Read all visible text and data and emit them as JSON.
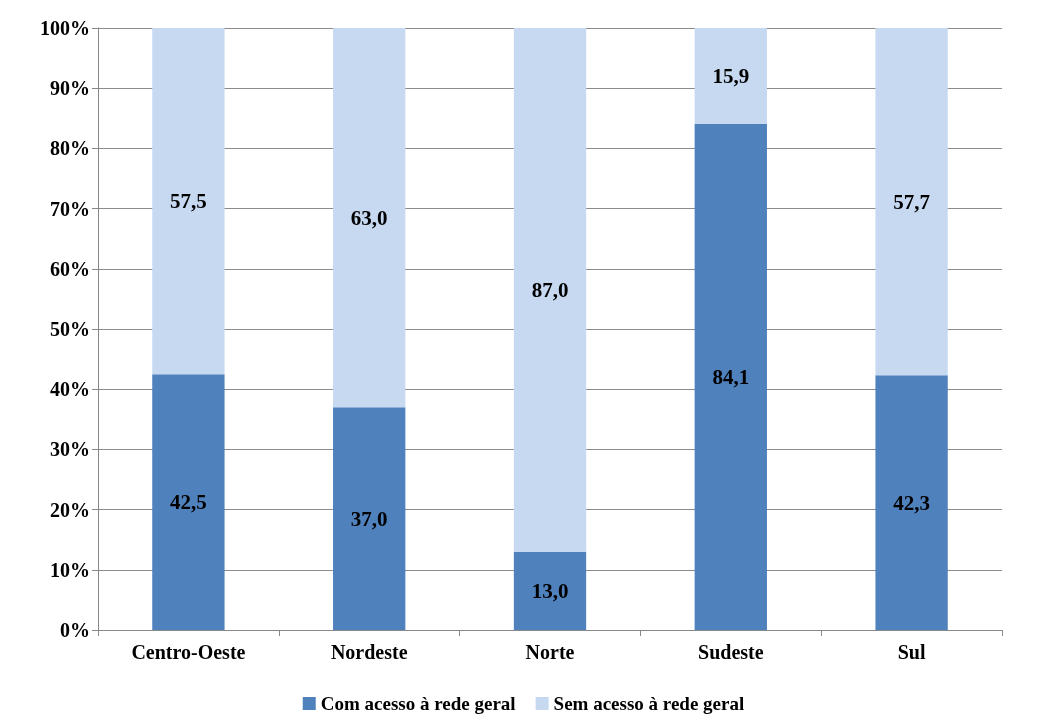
{
  "chart_data": {
    "type": "bar",
    "stacked": true,
    "categories": [
      "Centro-Oeste",
      "Nordeste",
      "Norte",
      "Sudeste",
      "Sul"
    ],
    "series": [
      {
        "name": "Com acesso à rede geral",
        "color": "#4f81bd",
        "values": [
          42.5,
          37.0,
          13.0,
          84.1,
          42.3
        ],
        "value_labels": [
          "42,5",
          "37,0",
          "13,0",
          "84,1",
          "42,3"
        ]
      },
      {
        "name": "Sem acesso à rede geral",
        "color": "#c6d9f1",
        "values": [
          57.5,
          63.0,
          87.0,
          15.9,
          57.7
        ],
        "value_labels": [
          "57,5",
          "63,0",
          "87,0",
          "15,9",
          "57,7"
        ]
      }
    ],
    "ylim": [
      0,
      100
    ],
    "yticks": [
      {
        "value": 0,
        "label": "0%"
      },
      {
        "value": 10,
        "label": "10%"
      },
      {
        "value": 20,
        "label": "20%"
      },
      {
        "value": 30,
        "label": "30%"
      },
      {
        "value": 40,
        "label": "40%"
      },
      {
        "value": 50,
        "label": "50%"
      },
      {
        "value": 60,
        "label": "60%"
      },
      {
        "value": 70,
        "label": "70%"
      },
      {
        "value": 80,
        "label": "80%"
      },
      {
        "value": 90,
        "label": "90%"
      },
      {
        "value": 100,
        "label": "100%"
      }
    ],
    "grid": "y",
    "legend": "bottom"
  }
}
